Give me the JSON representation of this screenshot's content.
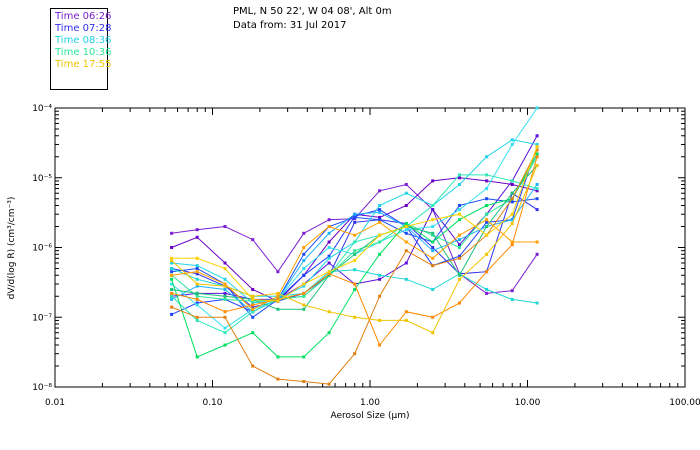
{
  "header": {
    "line1": "PML, N 50 22', W 04 08', Alt 0m",
    "line2": "Data from: 31 Jul 2017"
  },
  "chart_data": {
    "type": "line",
    "xscale": "log",
    "yscale": "log",
    "xlim": [
      0.01,
      100
    ],
    "ylim": [
      1e-08,
      0.0001
    ],
    "xlabel": "Aerosol Size (μm)",
    "ylabel": "dV/d(log R) (cm³/cm⁻³)",
    "xtick_labels": [
      "0.01",
      "0.10",
      "1.00",
      "10.00",
      "100.00"
    ],
    "ytick_labels": [
      "10⁻⁸",
      "10⁻⁷",
      "10⁻⁶",
      "10⁻⁵",
      "10⁻⁴"
    ],
    "legend": [
      {
        "label": "Time 06:26",
        "color": "#7b1fd0"
      },
      {
        "label": "Time 07:28",
        "color": "#3030f0"
      },
      {
        "label": "Time 08:36",
        "color": "#22d3e8"
      },
      {
        "label": "Time 10:36",
        "color": "#2ee89a"
      },
      {
        "label": "Time 17:55",
        "color": "#f0c400"
      }
    ],
    "legend_position": "top-left, outside plot",
    "x": [
      0.055,
      0.08,
      0.12,
      0.18,
      0.26,
      0.38,
      0.55,
      0.8,
      1.15,
      1.7,
      2.5,
      3.7,
      5.5,
      8.0,
      11.5
    ],
    "series": [
      {
        "color": "#7b1fd0",
        "values": [
          1.6e-06,
          1.8e-06,
          2e-06,
          1.3e-06,
          4.5e-07,
          1.6e-06,
          2.5e-06,
          2.6e-06,
          6.5e-06,
          8e-06,
          3.5e-06,
          4.2e-07,
          2.2e-07,
          2.4e-07,
          8e-07
        ]
      },
      {
        "color": "#6a00c8",
        "values": [
          1e-06,
          1.4e-06,
          6e-07,
          2.5e-07,
          1.7e-07,
          4e-07,
          1.2e-06,
          3e-06,
          2.7e-06,
          4e-06,
          9e-06,
          1e-05,
          9e-06,
          8e-06,
          6.5e-06
        ]
      },
      {
        "color": "#5a0fd8",
        "values": [
          2e-07,
          2.2e-07,
          2.2e-07,
          1.8e-07,
          1.8e-07,
          3e-07,
          6e-07,
          3e-07,
          3.5e-07,
          6e-07,
          3.5e-06,
          1.1e-06,
          3e-06,
          9e-06,
          4e-05
        ]
      },
      {
        "color": "#3030f0",
        "values": [
          5e-07,
          4.2e-07,
          2.8e-07,
          1.4e-07,
          1.7e-07,
          2.2e-07,
          4e-07,
          2.3e-06,
          2.5e-06,
          2.2e-06,
          1e-06,
          4.2e-07,
          4.5e-07,
          6e-06,
          3.5e-06
        ]
      },
      {
        "color": "#2040ff",
        "values": [
          1.1e-07,
          1.6e-07,
          1.8e-07,
          1.2e-07,
          1.8e-07,
          4e-07,
          7.5e-07,
          2.8e-06,
          3.5e-06,
          2e-06,
          5.5e-07,
          7.5e-07,
          2.3e-06,
          2.5e-06,
          2.8e-05
        ]
      },
      {
        "color": "#1a4cf5",
        "values": [
          4.5e-07,
          5e-07,
          3e-07,
          1e-07,
          1.8e-07,
          8e-07,
          2e-06,
          2.7e-06,
          2.5e-06,
          1.6e-06,
          1.2e-06,
          4e-06,
          5e-06,
          4.5e-06,
          5e-06
        ]
      },
      {
        "color": "#1fb2ff",
        "values": [
          1.8e-07,
          2.8e-07,
          2.5e-07,
          1.2e-07,
          1.8e-07,
          6.5e-07,
          1.6e-06,
          3e-06,
          3.2e-06,
          2e-06,
          9e-07,
          1.3e-06,
          2e-06,
          2.5e-06,
          8e-06
        ]
      },
      {
        "color": "#22d3e8",
        "values": [
          6e-07,
          5.5e-07,
          3.5e-07,
          1.6e-07,
          1.8e-07,
          2.8e-07,
          7e-07,
          1.2e-06,
          4e-06,
          6e-06,
          4e-06,
          8e-06,
          2e-05,
          3.5e-05,
          3e-05
        ]
      },
      {
        "color": "#33e0f0",
        "values": [
          3e-07,
          1.5e-07,
          7e-08,
          1.3e-07,
          1.8e-07,
          5e-07,
          1e-06,
          8e-07,
          1.2e-06,
          1.8e-06,
          2e-06,
          3.5e-06,
          7e-06,
          3e-05,
          0.0001
        ]
      },
      {
        "color": "#1fd6d6",
        "values": [
          5e-07,
          3.5e-07,
          2.8e-07,
          2e-07,
          2e-07,
          2.2e-07,
          4.5e-07,
          4.8e-07,
          4e-07,
          3.5e-07,
          2.5e-07,
          4.2e-07,
          2.5e-07,
          1.8e-07,
          1.6e-07
        ]
      },
      {
        "color": "#2ee8b8",
        "values": [
          2e-07,
          9e-08,
          6e-08,
          1.2e-07,
          1.8e-07,
          2e-07,
          4e-07,
          1.2e-06,
          1.5e-06,
          2e-06,
          4e-06,
          1.1e-05,
          1.1e-05,
          9e-06,
          7e-06
        ]
      },
      {
        "color": "#2ee89a",
        "values": [
          4e-07,
          2e-07,
          1.8e-07,
          1.7e-07,
          1.8e-07,
          2e-07,
          4e-07,
          9e-07,
          1.2e-06,
          2.2e-06,
          1.5e-06,
          1e-06,
          3e-06,
          5e-06,
          2e-05
        ]
      },
      {
        "color": "#00e060",
        "values": [
          3.5e-07,
          2.7e-08,
          4e-08,
          6e-08,
          2.7e-08,
          2.7e-08,
          6e-08,
          2.5e-07,
          8e-07,
          2.2e-06,
          1.2e-06,
          2.5e-06,
          4e-06,
          5e-06,
          2.2e-05
        ]
      },
      {
        "color": "#1ec07a",
        "values": [
          2.5e-07,
          2.2e-07,
          2e-07,
          1.8e-07,
          1.3e-07,
          1.3e-07,
          4e-07,
          8e-07,
          1.5e-06,
          2e-06,
          1.6e-06,
          4e-07,
          2e-06,
          6e-06,
          1.5e-05
        ]
      },
      {
        "color": "#e08010",
        "values": [
          1.4e-07,
          1e-07,
          1e-07,
          2e-08,
          1.3e-08,
          1.2e-08,
          1.1e-08,
          3e-08,
          2e-07,
          9e-07,
          5.5e-07,
          7e-07,
          1.5e-06,
          5e-06,
          2.5e-05
        ]
      },
      {
        "color": "#ff8a00",
        "values": [
          2.2e-07,
          1.8e-07,
          1.2e-07,
          1.5e-07,
          1.8e-07,
          2.2e-07,
          4.2e-07,
          3e-07,
          4e-08,
          1.2e-07,
          1e-07,
          1.6e-07,
          4.5e-07,
          1.1e-06,
          2e-05
        ]
      },
      {
        "color": "#f0c400",
        "values": [
          6.5e-07,
          3e-07,
          2.8e-07,
          2e-07,
          2.2e-07,
          1.5e-07,
          1.2e-07,
          1e-07,
          9e-08,
          9e-08,
          6e-08,
          3.5e-07,
          8e-07,
          2.2e-06,
          1.5e-05
        ]
      },
      {
        "color": "#ffa000",
        "values": [
          4e-07,
          4.5e-07,
          3e-07,
          1.3e-07,
          2e-07,
          1e-06,
          2e-06,
          1.5e-06,
          2.3e-06,
          1.2e-06,
          7e-07,
          1.5e-06,
          2.5e-06,
          1.2e-06,
          1.2e-06
        ]
      },
      {
        "color": "#ffd000",
        "values": [
          7e-07,
          7e-07,
          5e-07,
          1.8e-07,
          1.7e-07,
          3e-07,
          4.5e-07,
          6.5e-07,
          1.5e-06,
          2e-06,
          2.5e-06,
          3e-06,
          1.5e-06,
          3e-06,
          2.8e-05
        ]
      }
    ]
  }
}
